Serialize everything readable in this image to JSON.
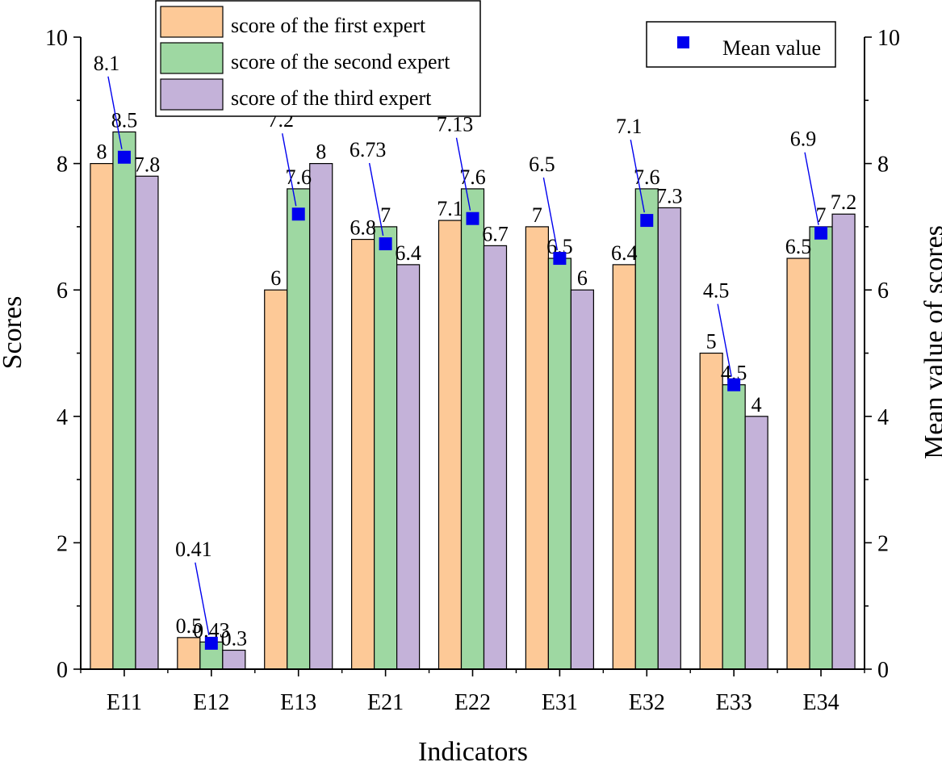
{
  "chart_data": {
    "type": "bar",
    "title": "",
    "xlabel": "Indicators",
    "ylabel": "Scores",
    "y2label": "Mean value of scores",
    "ylim": [
      0,
      10
    ],
    "y2lim": [
      0,
      10
    ],
    "yticks": [
      "0",
      "2",
      "4",
      "6",
      "8",
      "10"
    ],
    "categories": [
      "E11",
      "E12",
      "E13",
      "E21",
      "E22",
      "E31",
      "E32",
      "E33",
      "E34"
    ],
    "series": [
      {
        "name": "score of the first expert",
        "color": "#FDC997",
        "values": [
          8,
          0.5,
          6,
          6.8,
          7.1,
          7,
          6.4,
          5,
          6.5
        ],
        "labels": [
          "8",
          "0.5",
          "6",
          "6.8",
          "7.1",
          "7",
          "6.4",
          "5",
          "6.5"
        ]
      },
      {
        "name": "score of the second expert",
        "color": "#9ED8A2",
        "values": [
          8.5,
          0.43,
          7.6,
          7,
          7.6,
          6.5,
          7.6,
          4.5,
          7
        ],
        "labels": [
          "8.5",
          "0.43",
          "7.6",
          "7",
          "7.6",
          "6.5",
          "7.6",
          "4.5",
          "7"
        ]
      },
      {
        "name": "score of the third expert",
        "color": "#C4B2D9",
        "values": [
          7.8,
          0.3,
          8,
          6.4,
          6.7,
          6,
          7.3,
          4,
          7.2
        ],
        "labels": [
          "7.8",
          "0.3",
          "8",
          "6.4",
          "6.7",
          "6",
          "7.3",
          "4",
          "7.2"
        ]
      }
    ],
    "mean": {
      "name": "Mean value",
      "color": "#0000EE",
      "values": [
        8.1,
        0.41,
        7.2,
        6.73,
        7.13,
        6.5,
        7.1,
        4.5,
        6.9
      ],
      "labels": [
        "8.1",
        "0.41",
        "7.2",
        "6.73",
        "7.13",
        "6.5",
        "7.1",
        "4.5",
        "6.9"
      ]
    },
    "legend_position": "top"
  }
}
